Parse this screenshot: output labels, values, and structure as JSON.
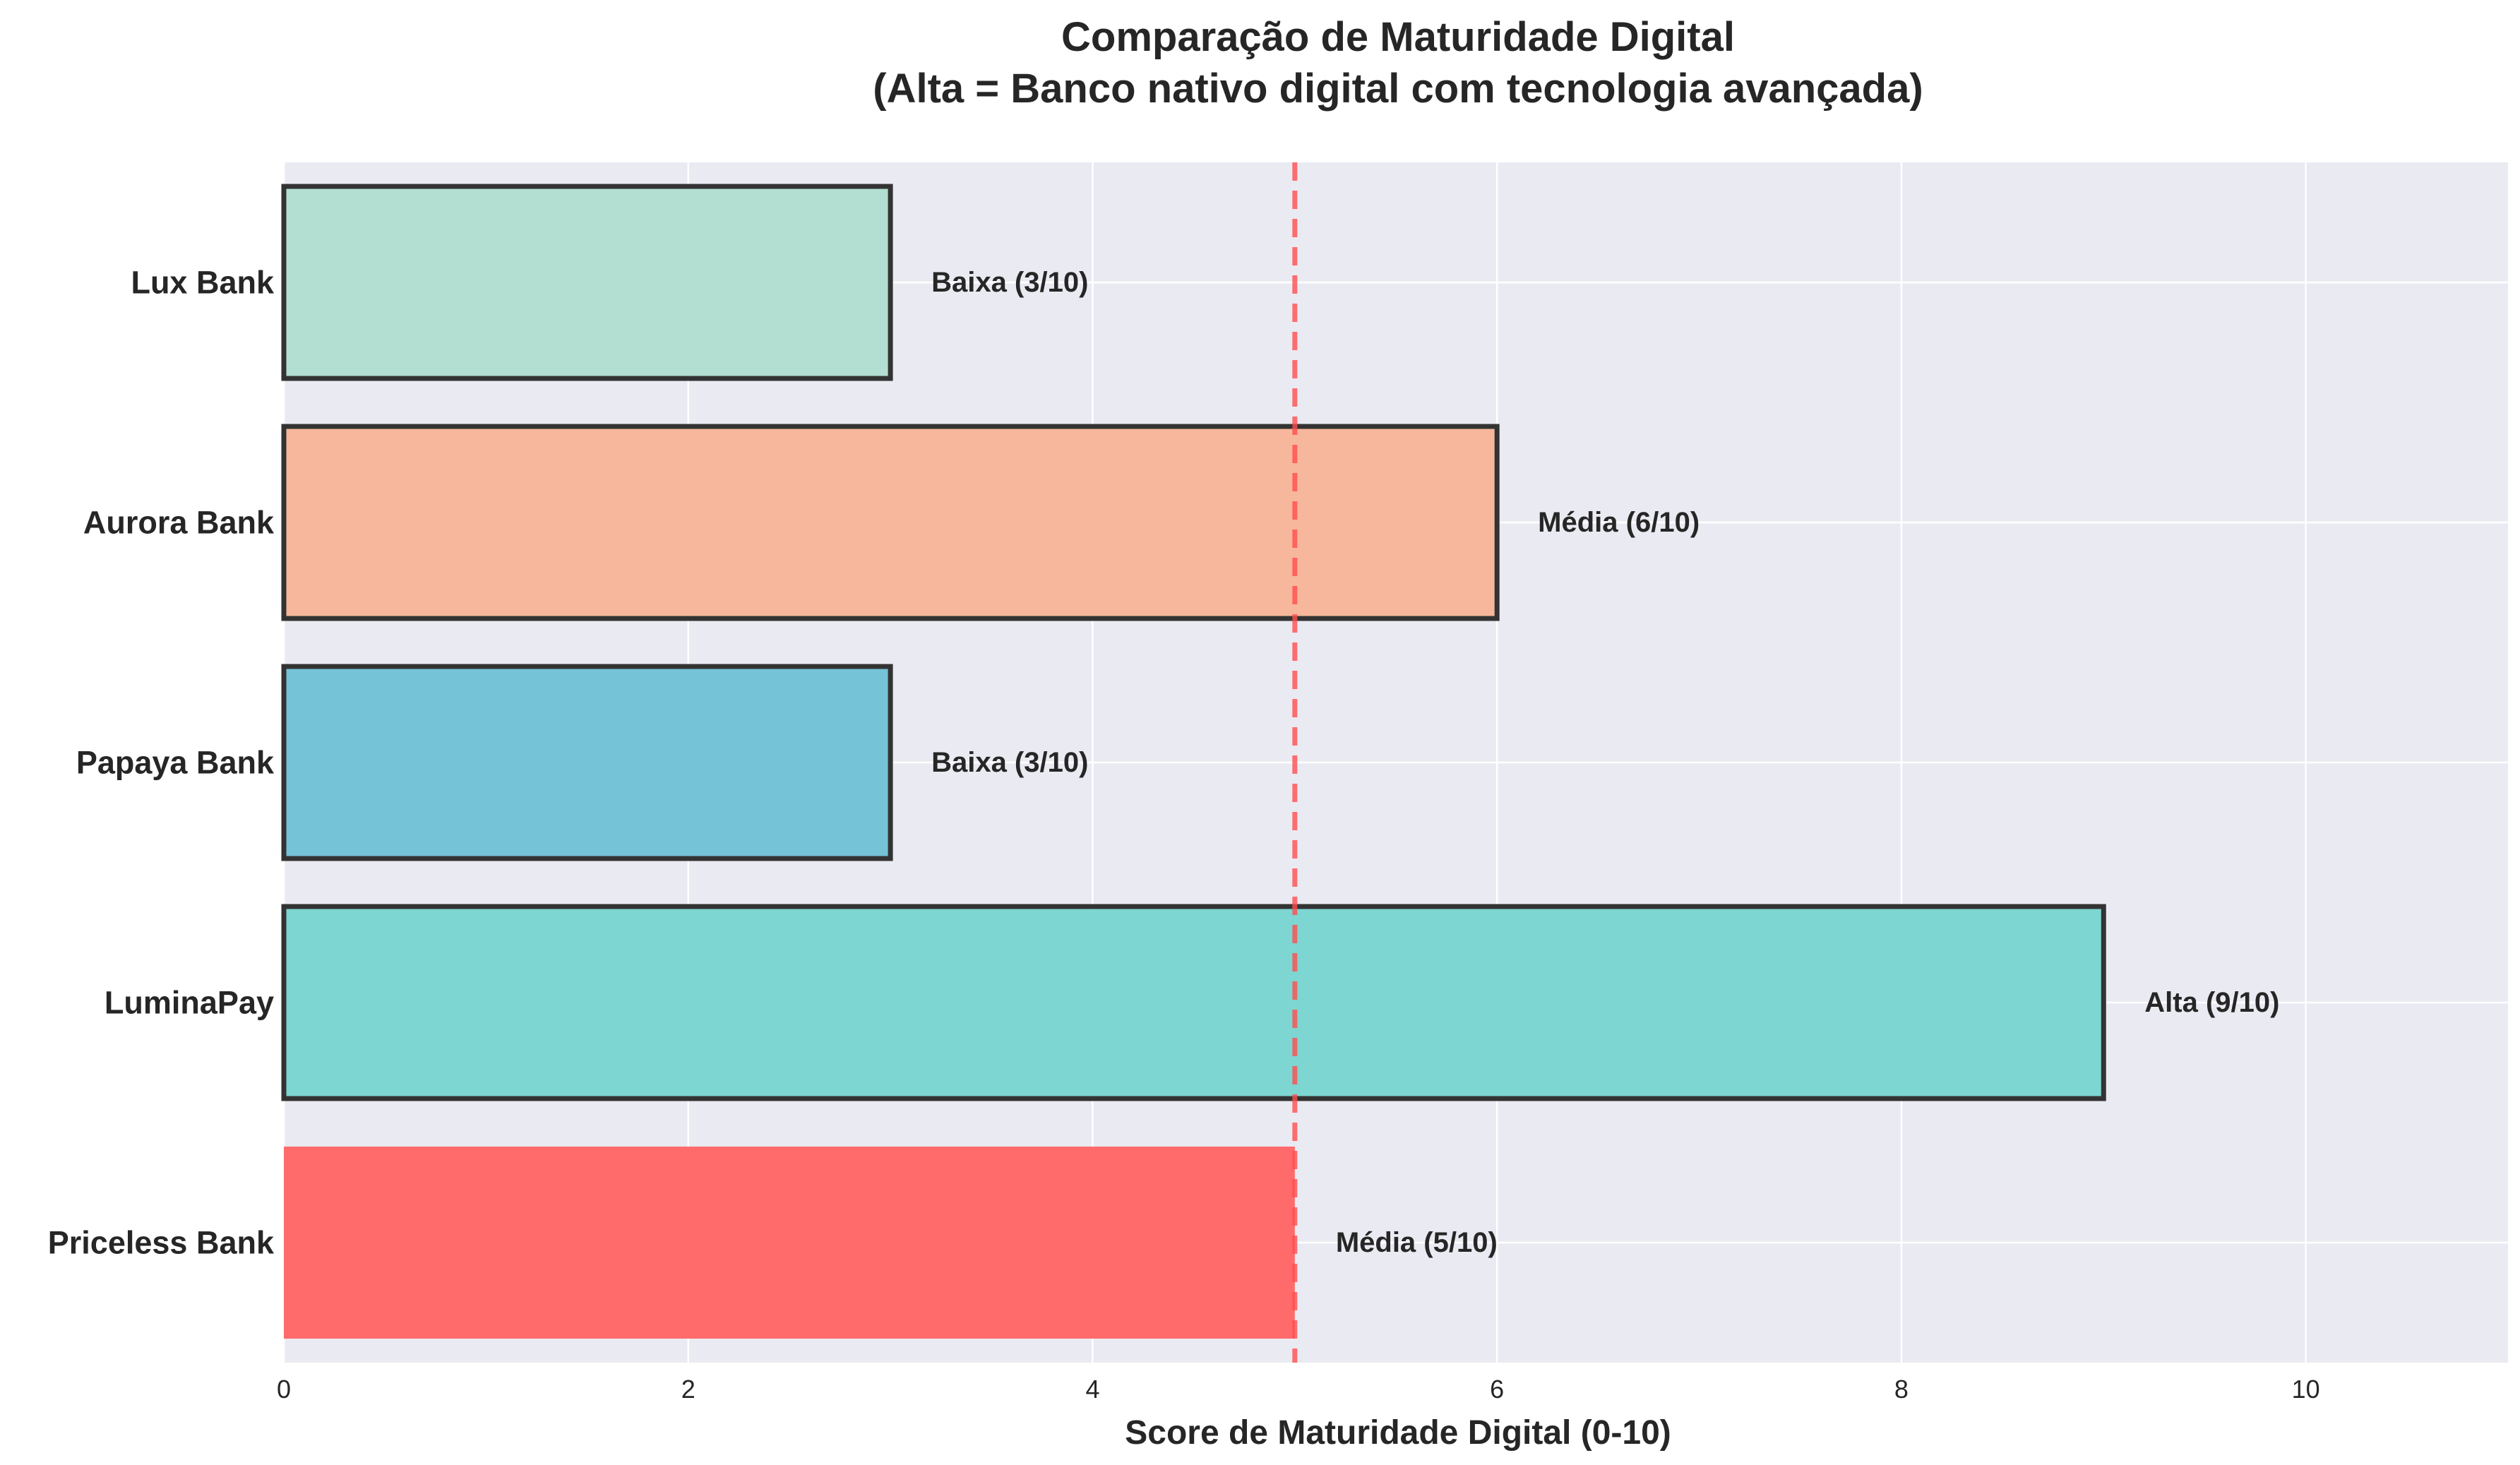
{
  "chart_data": {
    "type": "bar",
    "orientation": "horizontal",
    "title": "Comparação de Maturidade Digital",
    "subtitle": "(Alta = Banco nativo digital com tecnologia avançada)",
    "xlabel": "Score de Maturidade Digital (0-10)",
    "ylabel": "",
    "xlim": [
      0,
      11
    ],
    "xticks": [
      0,
      2,
      4,
      6,
      8,
      10
    ],
    "grid": true,
    "reference_line": {
      "value": 5,
      "color": "#ff4d4d",
      "style": "dashed"
    },
    "categories": [
      "Lux Bank",
      "Aurora Bank",
      "Papaya Bank",
      "LuminaPay",
      "Priceless Bank"
    ],
    "values": [
      3,
      6,
      3,
      9,
      5
    ],
    "data_labels": [
      "Baixa (3/10)",
      "Média (6/10)",
      "Baixa (3/10)",
      "Alta (9/10)",
      "Média (5/10)"
    ],
    "colors": [
      "#b3dfd3",
      "#f7b79c",
      "#74c3d7",
      "#7dd6d2",
      "#ff6b6b"
    ],
    "outlined": [
      true,
      true,
      true,
      true,
      false
    ],
    "outline_color": "#333333",
    "plot_background": "#eaeaf2",
    "grid_color": "#ffffff"
  }
}
